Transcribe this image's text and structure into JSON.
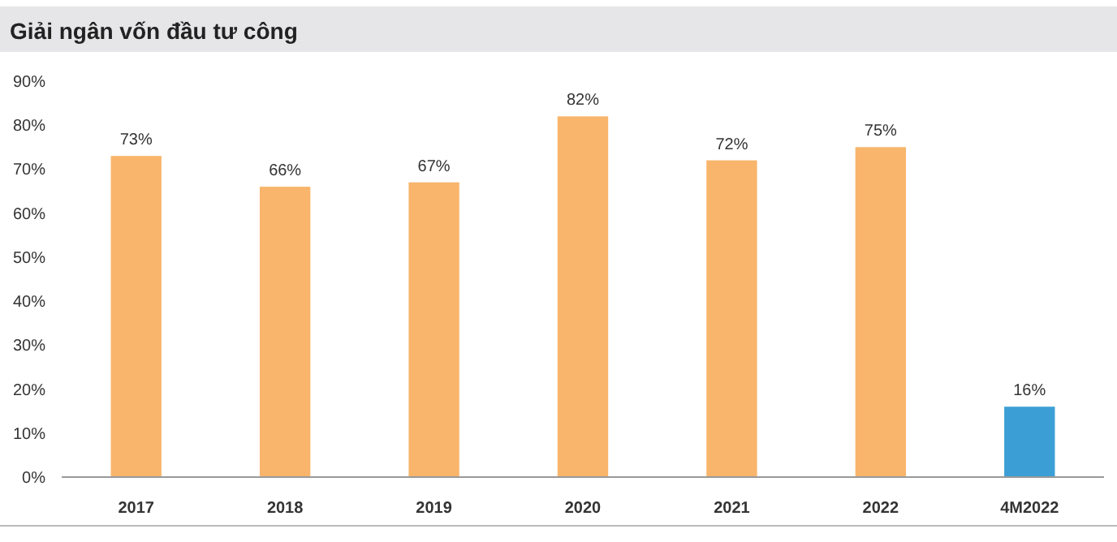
{
  "chart_data": {
    "type": "bar",
    "title": "Giải ngân vốn đầu tư công",
    "categories": [
      "2017",
      "2018",
      "2019",
      "2020",
      "2021",
      "2022",
      "4M2022"
    ],
    "values": [
      73,
      66,
      67,
      82,
      72,
      75,
      16
    ],
    "colors": [
      "#f8b56b",
      "#f8b56b",
      "#f8b56b",
      "#f8b56b",
      "#f8b56b",
      "#f8b56b",
      "#3b9fd6"
    ],
    "value_labels": [
      "73%",
      "66%",
      "67%",
      "82%",
      "72%",
      "75%",
      "16%"
    ],
    "ylim": [
      0,
      90
    ],
    "yticks": [
      {
        "value": 0,
        "label": "0%"
      },
      {
        "value": 10,
        "label": "10%"
      },
      {
        "value": 20,
        "label": "20%"
      },
      {
        "value": 30,
        "label": "30%"
      },
      {
        "value": 40,
        "label": "40%"
      },
      {
        "value": 50,
        "label": "50%"
      },
      {
        "value": 60,
        "label": "60%"
      },
      {
        "value": 70,
        "label": "70%"
      },
      {
        "value": 80,
        "label": "80%"
      },
      {
        "value": 90,
        "label": "90%"
      }
    ],
    "grid": false
  }
}
